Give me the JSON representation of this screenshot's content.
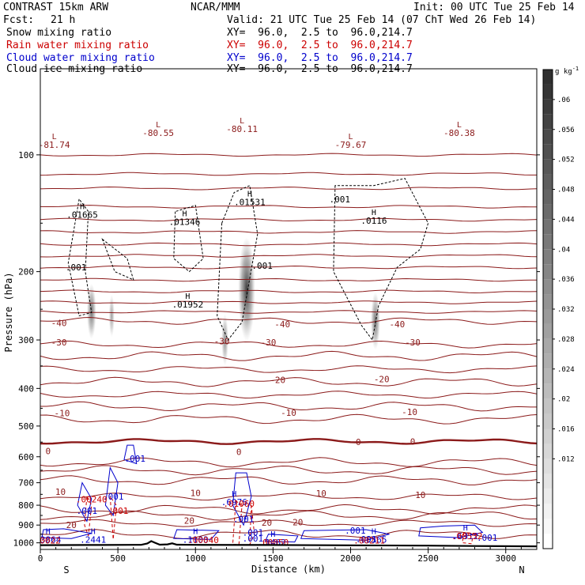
{
  "header": {
    "model": "CONTRAST 15km ARW",
    "org": "NCAR/MMM",
    "init": "Init: 00 UTC Tue 25 Feb 14",
    "fcst_label": "Fcst:",
    "fcst_value": "21 h",
    "valid": "Valid: 21 UTC Tue 25 Feb 14 (07 ChT Wed 26 Feb 14)"
  },
  "fields": [
    {
      "name": "Snow mixing ratio",
      "xy": "XY=  96.0,  2.5 to  96.0,214.7",
      "color": "#000000"
    },
    {
      "name": "Rain water mixing ratio",
      "xy": "XY=  96.0,  2.5 to  96.0,214.7",
      "color": "#cc0000"
    },
    {
      "name": "Cloud water mixing ratio",
      "xy": "XY=  96.0,  2.5 to  96.0,214.7",
      "color": "#0000cc"
    },
    {
      "name": "Cloud ice mixing ratio",
      "xy": "XY=  96.0,  2.5 to  96.0,214.7",
      "color": "#000000"
    }
  ],
  "chart_data": {
    "type": "cross-section",
    "ylabel": "Pressure (hPa)",
    "xlabel": "Distance (km)",
    "x_ticks": [
      "0",
      "500",
      "1000",
      "1500",
      "2000",
      "2500",
      "3000"
    ],
    "y_ticks": [
      "100",
      "200",
      "300",
      "400",
      "500",
      "600",
      "700",
      "800",
      "900",
      "1000"
    ],
    "xlim": [
      0,
      3200
    ],
    "ylim": [
      1040,
      60
    ],
    "left_end": "S",
    "right_end": "N",
    "colorbar": {
      "unit": "g kg",
      "unit_sup": "-1",
      "ticks": [
        ".06",
        ".056",
        ".052",
        ".048",
        ".044",
        ".04",
        ".036",
        ".032",
        ".028",
        ".024",
        ".02",
        ".016",
        ".012"
      ],
      "values": [
        0.06,
        0.056,
        0.052,
        0.048,
        0.044,
        0.04,
        0.036,
        0.032,
        0.028,
        0.024,
        0.02,
        0.016,
        0.012
      ],
      "range": [
        0.0,
        0.064
      ]
    },
    "temperature_contours": [
      {
        "label": "-40",
        "p": 268
      },
      {
        "label": "-30",
        "p": 308
      },
      {
        "label": "-20",
        "p": 357
      },
      {
        "label": "-10",
        "p": 415
      },
      {
        "label": "0",
        "p": 548
      },
      {
        "label": "10",
        "p": 760
      },
      {
        "label": "20",
        "p": 890
      }
    ],
    "temperature_labels": [
      {
        "text": "-40",
        "x": 120,
        "p": 271
      },
      {
        "text": "-40",
        "x": 1560,
        "p": 273
      },
      {
        "text": "-40",
        "x": 2300,
        "p": 273
      },
      {
        "text": "-30",
        "x": 120,
        "p": 304
      },
      {
        "text": "-30",
        "x": 1170,
        "p": 302
      },
      {
        "text": "-30",
        "x": 1470,
        "p": 304
      },
      {
        "text": "-30",
        "x": 2400,
        "p": 304
      },
      {
        "text": "-20",
        "x": 1530,
        "p": 380
      },
      {
        "text": "-20",
        "x": 2200,
        "p": 378
      },
      {
        "text": "-10",
        "x": 140,
        "p": 463
      },
      {
        "text": "-10",
        "x": 1600,
        "p": 462
      },
      {
        "text": "-10",
        "x": 2380,
        "p": 460
      },
      {
        "text": "0",
        "x": 50,
        "p": 580
      },
      {
        "text": "0",
        "x": 1280,
        "p": 582
      },
      {
        "text": "0",
        "x": 2050,
        "p": 550
      },
      {
        "text": "0",
        "x": 2400,
        "p": 548
      },
      {
        "text": "10",
        "x": 130,
        "p": 738
      },
      {
        "text": "10",
        "x": 1000,
        "p": 744
      },
      {
        "text": "10",
        "x": 1810,
        "p": 746
      },
      {
        "text": "10",
        "x": 2450,
        "p": 752
      },
      {
        "text": "20",
        "x": 200,
        "p": 900
      },
      {
        "text": "20",
        "x": 960,
        "p": 876
      },
      {
        "text": "20",
        "x": 1460,
        "p": 887
      },
      {
        "text": "20",
        "x": 1660,
        "p": 885
      }
    ],
    "upper_contours": [
      {
        "p": 100
      },
      {
        "p": 112
      },
      {
        "p": 122
      },
      {
        "p": 136
      },
      {
        "p": 147
      },
      {
        "p": 158
      },
      {
        "p": 170
      },
      {
        "p": 182
      },
      {
        "p": 195
      },
      {
        "p": 210
      },
      {
        "p": 225
      },
      {
        "p": 240
      },
      {
        "p": 254
      }
    ],
    "lows": [
      {
        "letter": "L",
        "value": "-81.74",
        "x": 90,
        "p": 91
      },
      {
        "letter": "L",
        "value": "-80.55",
        "x": 760,
        "p": 85
      },
      {
        "letter": "L",
        "value": "-80.11",
        "x": 1300,
        "p": 83
      },
      {
        "letter": "L",
        "value": "-79.67",
        "x": 2000,
        "p": 91
      },
      {
        "letter": "L",
        "value": "-80.38",
        "x": 2700,
        "p": 85
      }
    ],
    "snow_highs": [
      {
        "letter": "H",
        "value": ".01665",
        "x": 270,
        "p": 138
      },
      {
        "letter": "H",
        "value": ".01346",
        "x": 930,
        "p": 144
      },
      {
        "letter": "H",
        "value": ".01531",
        "x": 1350,
        "p": 128
      },
      {
        "letter": "H",
        "value": ".01952",
        "x": 950,
        "p": 235
      },
      {
        "letter": "",
        "value": ".001",
        "x": 1930,
        "p": 130
      },
      {
        "letter": "H",
        "value": ".0116",
        "x": 2150,
        "p": 143
      },
      {
        "letter": "",
        "value": ".001",
        "x": 230,
        "p": 195
      },
      {
        "letter": "",
        "value": ".001",
        "x": 1430,
        "p": 193
      }
    ],
    "cloud_highs": [
      {
        "letter": "H",
        "value": ".3864",
        "x": 50,
        "p": 948
      },
      {
        "letter": "H",
        "value": ".2441",
        "x": 340,
        "p": 948
      },
      {
        "letter": "H",
        "value": ".1103",
        "x": 1000,
        "p": 948
      },
      {
        "letter": "H",
        "value": ".1402",
        "x": 1500,
        "p": 964
      },
      {
        "letter": "H",
        "value": ".5565",
        "x": 2150,
        "p": 949
      },
      {
        "letter": "H",
        "value": ".6312",
        "x": 2740,
        "p": 930
      },
      {
        "letter": "",
        "value": ".001",
        "x": 470,
        "p": 760
      },
      {
        "letter": "",
        "value": ".001",
        "x": 300,
        "p": 827
      },
      {
        "letter": "",
        "value": ".001",
        "x": 1310,
        "p": 868
      },
      {
        "letter": "",
        "value": ".001",
        "x": 1370,
        "p": 940
      },
      {
        "letter": "",
        "value": ".001",
        "x": 1370,
        "p": 975
      },
      {
        "letter": "",
        "value": ".001",
        "x": 2030,
        "p": 930
      },
      {
        "letter": "",
        "value": ".001",
        "x": 2100,
        "p": 978
      },
      {
        "letter": "",
        "value": ".001",
        "x": 2880,
        "p": 970
      },
      {
        "letter": "",
        "value": ".001",
        "x": 610,
        "p": 606
      },
      {
        "letter": "H",
        "value": ".6976",
        "x": 1250,
        "p": 760
      }
    ],
    "rain_labels": [
      {
        "letter": "",
        "value": ".00240",
        "x": 330,
        "p": 772
      },
      {
        "letter": "",
        "value": ".001",
        "x": 500,
        "p": 827
      },
      {
        "letter": "",
        "value": ".01060",
        "x": 1280,
        "p": 793
      },
      {
        "letter": "",
        "value": ".00022",
        "x": 30,
        "p": 985
      },
      {
        "letter": "",
        "value": ".00040",
        "x": 1050,
        "p": 983
      },
      {
        "letter": "",
        "value": ".00050",
        "x": 1500,
        "p": 997
      },
      {
        "letter": "",
        "value": ".00211",
        "x": 2120,
        "p": 985
      },
      {
        "letter": "",
        "value": ".00532",
        "x": 2750,
        "p": 960
      }
    ],
    "snow_blobs": [
      {
        "x": 330,
        "p": 253,
        "rx": 30,
        "rp": 45,
        "v": 0.045
      },
      {
        "x": 460,
        "p": 260,
        "rx": 18,
        "rp": 35,
        "v": 0.03
      },
      {
        "x": 1330,
        "p": 222,
        "rx": 55,
        "rp": 80,
        "v": 0.062
      },
      {
        "x": 1190,
        "p": 300,
        "rx": 22,
        "rp": 50,
        "v": 0.035
      },
      {
        "x": 2160,
        "p": 268,
        "rx": 30,
        "rp": 50,
        "v": 0.045
      }
    ],
    "terrain": [
      [
        0,
        1014
      ],
      [
        300,
        1013
      ],
      [
        600,
        1012
      ],
      [
        650,
        1012
      ],
      [
        690,
        1004
      ],
      [
        715,
        990
      ],
      [
        740,
        1000
      ],
      [
        770,
        1011
      ],
      [
        820,
        1009
      ],
      [
        850,
        1003
      ],
      [
        880,
        1011
      ],
      [
        1000,
        1012
      ],
      [
        1500,
        1013
      ],
      [
        2000,
        1015
      ],
      [
        2500,
        1017
      ],
      [
        2800,
        1019
      ],
      [
        3200,
        1021
      ]
    ]
  }
}
